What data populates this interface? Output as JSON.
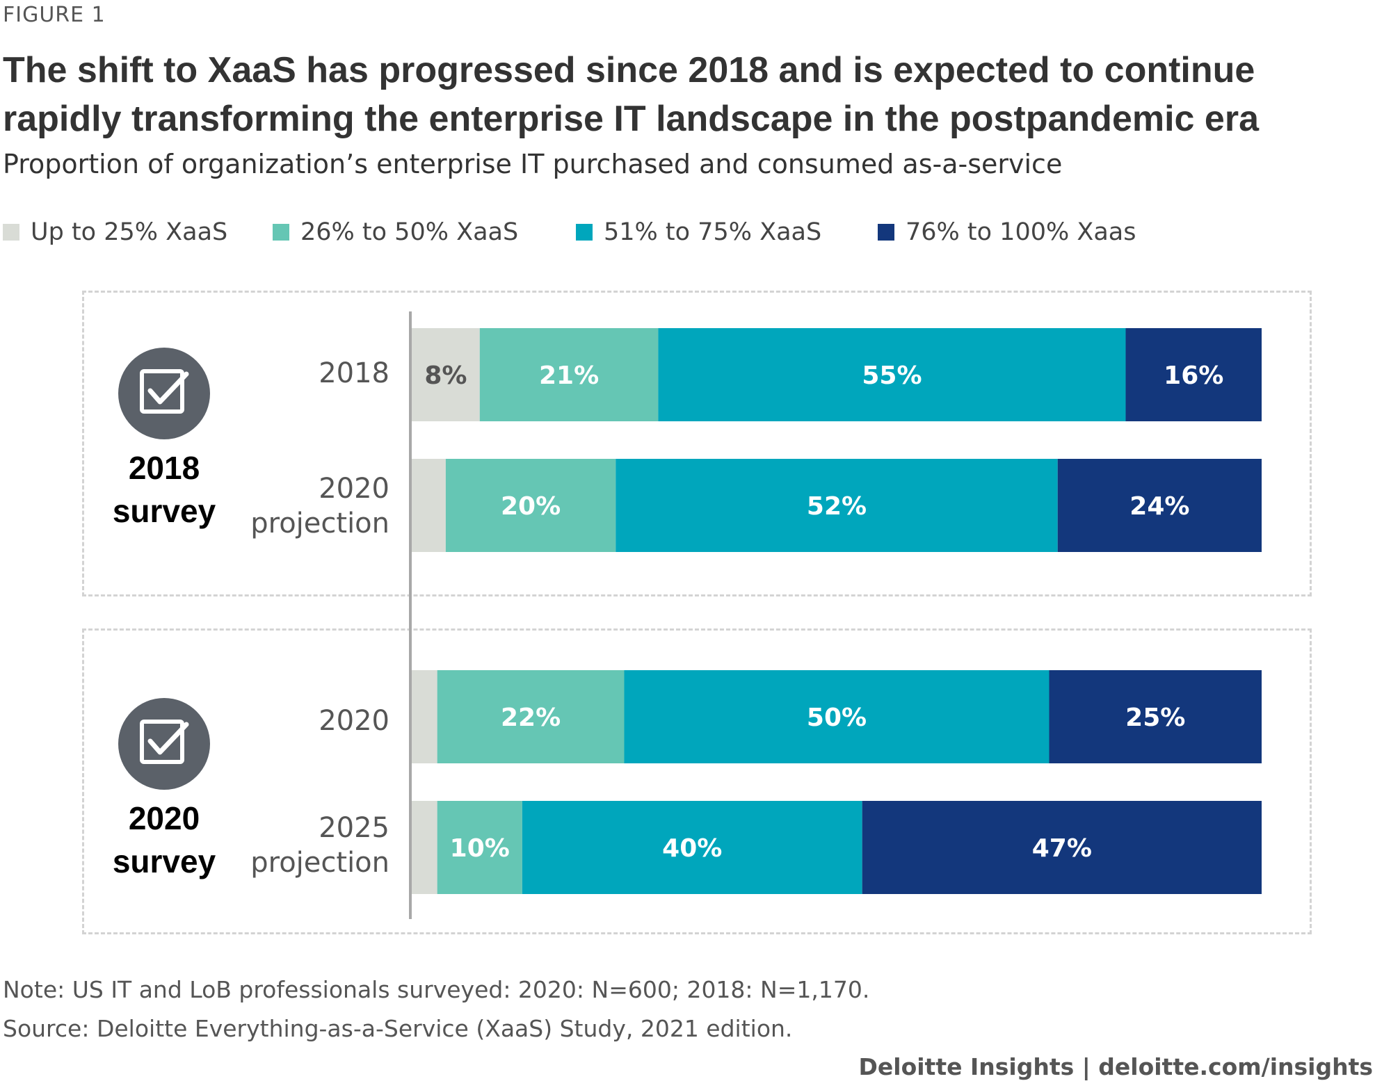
{
  "figure_label": "FIGURE 1",
  "chart_data": {
    "type": "bar",
    "orientation": "horizontal",
    "stacked": true,
    "figure_label": "FIGURE 1",
    "title": "The shift to XaaS has progressed since 2018 and is expected to continue rapidly transforming the enterprise IT landscape in the postpandemic era",
    "subtitle": "Proportion of organization’s enterprise IT purchased and consumed as-a-service",
    "legend_position": "top",
    "grid": false,
    "xlim": [
      0,
      100
    ],
    "series": [
      {
        "name": "Up to 25% XaaS",
        "color": "#d9dcd6"
      },
      {
        "name": "26% to 50% XaaS",
        "color": "#65c6b4"
      },
      {
        "name": "51% to 75% XaaS",
        "color": "#00a6bc"
      },
      {
        "name": "76% to 100% Xaas",
        "color": "#13377c"
      }
    ],
    "groups": [
      {
        "label": "2018 survey",
        "label_lines": [
          "2018",
          "survey"
        ],
        "rows": [
          {
            "label": "2018",
            "label_lines": [
              "2018"
            ],
            "values": [
              8,
              21,
              55,
              16
            ],
            "labels": [
              "8%",
              "21%",
              "55%",
              "16%"
            ]
          },
          {
            "label": "2020 projection",
            "label_lines": [
              "2020",
              "projection"
            ],
            "values": [
              4,
              20,
              52,
              24
            ],
            "labels": [
              "",
              "20%",
              "52%",
              "24%"
            ]
          }
        ]
      },
      {
        "label": "2020 survey",
        "label_lines": [
          "2020",
          "survey"
        ],
        "rows": [
          {
            "label": "2020",
            "label_lines": [
              "2020"
            ],
            "values": [
              3,
              22,
              50,
              25
            ],
            "labels": [
              "",
              "22%",
              "50%",
              "25%"
            ]
          },
          {
            "label": "2025 projection",
            "label_lines": [
              "2025",
              "projection"
            ],
            "values": [
              3,
              10,
              40,
              47
            ],
            "labels": [
              "",
              "10%",
              "40%",
              "47%"
            ]
          }
        ]
      }
    ]
  },
  "note": "Note: US IT and LoB professionals surveyed: 2020: N=600; 2018: N=1,170.",
  "source": "Source: Deloitte Everything-as-a-Service (XaaS) Study, 2021 edition.",
  "credit": "Deloitte Insights | deloitte.com/insights",
  "icons": {
    "survey": "checkbox-icon"
  },
  "colors": {
    "label_dark": "#555555",
    "label_light": "#ffffff",
    "icon_bg": "#5b6169"
  }
}
